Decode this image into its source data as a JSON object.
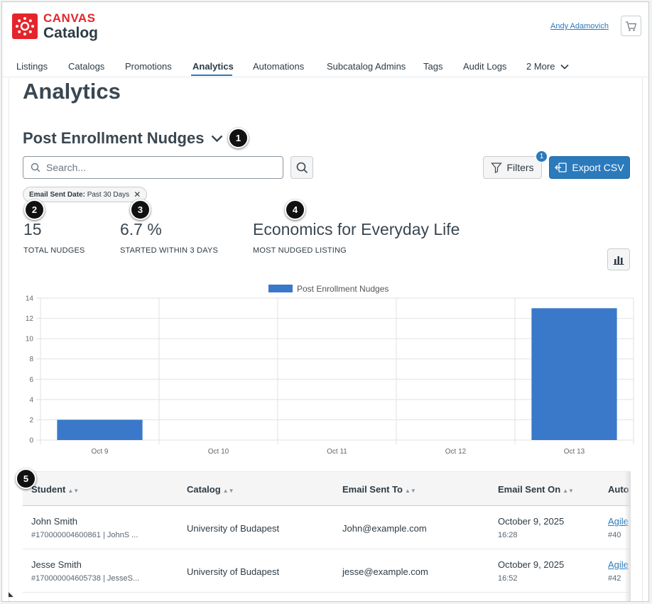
{
  "brand": {
    "top": "CANVAS",
    "bottom": "Catalog"
  },
  "user": {
    "name": "Andy Adamovich"
  },
  "nav": {
    "items": [
      "Listings",
      "Catalogs",
      "Promotions",
      "Analytics",
      "Automations",
      "Subcatalog Admins",
      "Tags",
      "Audit Logs",
      "2 More"
    ],
    "active": "Analytics"
  },
  "page": {
    "title": "Analytics"
  },
  "report": {
    "title": "Post Enrollment Nudges"
  },
  "search": {
    "placeholder": "Search..."
  },
  "buttons": {
    "filters": "Filters",
    "filters_count": "1",
    "export": "Export CSV"
  },
  "filter_pill": {
    "label": "Email Sent Date:",
    "value": "Past 30 Days"
  },
  "stats": [
    {
      "value": "15",
      "label": "TOTAL NUDGES"
    },
    {
      "value": "6.7 %",
      "label": "STARTED WITHIN 3 DAYS"
    },
    {
      "value": "Economics for Everyday Life",
      "label": "MOST NUDGED LISTING"
    }
  ],
  "callouts": [
    "1",
    "2",
    "3",
    "4",
    "5"
  ],
  "chart_data": {
    "type": "bar",
    "categories": [
      "Oct 9",
      "Oct 10",
      "Oct 11",
      "Oct 12",
      "Oct 13"
    ],
    "series": [
      {
        "name": "Post Enrollment Nudges",
        "values": [
          2,
          0,
          0,
          0,
          13
        ]
      }
    ],
    "ylim": [
      0,
      14
    ],
    "yticks": [
      0,
      2,
      4,
      6,
      8,
      10,
      12,
      14
    ],
    "grid": true,
    "legend": "top-center",
    "color": "#3a78c9"
  },
  "table": {
    "columns": [
      "Student",
      "Catalog",
      "Email Sent To",
      "Email Sent On",
      "Auto"
    ],
    "rows": [
      {
        "name": "John Smith",
        "id": "#170000004600861 | JohnS ...",
        "catalog": "University of Budapest",
        "email": "John@example.com",
        "date": "October 9, 2025",
        "time": "16:28",
        "auto": "Agile",
        "auto_id": "#40"
      },
      {
        "name": "Jesse Smith",
        "id": "#170000004605738 | JesseS...",
        "catalog": "University of Budapest",
        "email": "jesse@example.com",
        "date": "October 9, 2025",
        "time": "16:52",
        "auto": "Agile",
        "auto_id": "#42"
      }
    ]
  }
}
